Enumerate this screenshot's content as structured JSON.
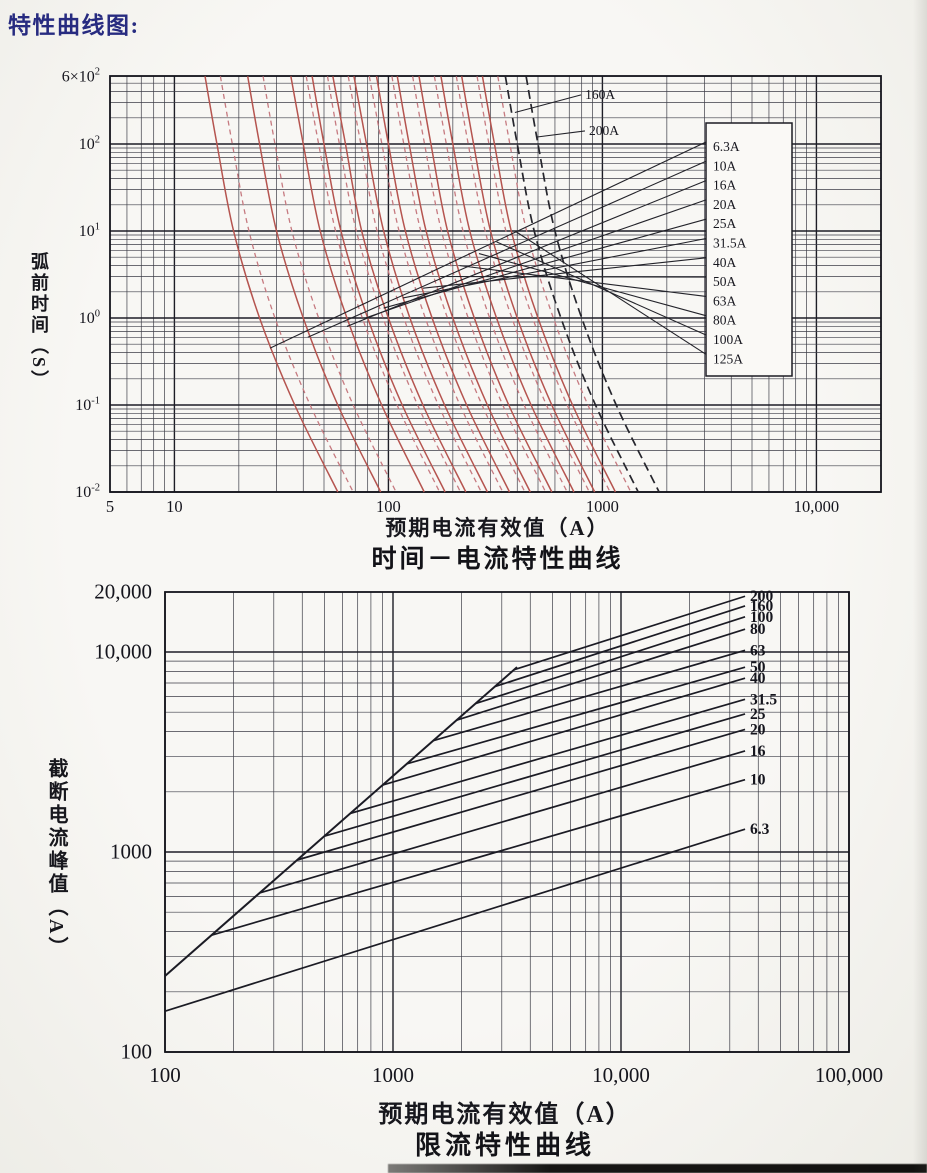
{
  "page": {
    "title": "特性曲线图:"
  },
  "chart_data": [
    {
      "type": "line",
      "title": "时间－电流特性曲线",
      "xlabel": "预期电流有效值（A）",
      "ylabel": "弧前时间（S）",
      "x_scale": "log",
      "y_scale": "log",
      "xlim": [
        5,
        20000
      ],
      "ylim": [
        0.01,
        600
      ],
      "grid": "log-minor",
      "legend_position": "right-box",
      "x_ticks": [
        {
          "v": 5,
          "label": "5"
        },
        {
          "v": 10,
          "label": "10"
        },
        {
          "v": 100,
          "label": "100"
        },
        {
          "v": 1000,
          "label": "1000"
        },
        {
          "v": 10000,
          "label": "10,000"
        }
      ],
      "y_ticks": [
        {
          "v": 600,
          "label": "6×10^2"
        },
        {
          "v": 100,
          "label": "10^2"
        },
        {
          "v": 10,
          "label": "10^1"
        },
        {
          "v": 1,
          "label": "10^0"
        },
        {
          "v": 0.1,
          "label": "10^-1"
        },
        {
          "v": 0.01,
          "label": "10^-2"
        }
      ],
      "t_values": [
        600,
        100,
        10,
        1,
        0.1,
        0.01
      ],
      "clearing_offset_factor": 1.18,
      "series": [
        {
          "name": "6.3A",
          "style": "solid-red",
          "in_legend": true,
          "i_values": [
            13.9,
            15.8,
            18.9,
            25,
            36.5,
            58
          ],
          "anchor": [
            28,
            0.45
          ]
        },
        {
          "name": "10A",
          "style": "solid-red",
          "in_legend": true,
          "i_values": [
            22,
            25,
            30,
            40,
            58,
            92
          ],
          "anchor": [
            42,
            0.6
          ]
        },
        {
          "name": "16A",
          "style": "solid-red",
          "in_legend": true,
          "i_values": [
            35,
            40,
            48,
            64,
            93,
            147
          ],
          "anchor": [
            64,
            0.8
          ]
        },
        {
          "name": "20A",
          "style": "solid-red",
          "in_legend": true,
          "i_values": [
            44,
            50,
            60,
            80,
            116,
            184
          ],
          "anchor": [
            78,
            1.0
          ]
        },
        {
          "name": "25A",
          "style": "solid-red",
          "in_legend": true,
          "i_values": [
            55,
            63,
            75,
            100,
            145,
            230
          ],
          "anchor": [
            95,
            1.3
          ]
        },
        {
          "name": "31.5A",
          "style": "solid-red",
          "in_legend": true,
          "i_values": [
            69,
            79,
            95,
            126,
            183,
            290
          ],
          "anchor": [
            117,
            1.7
          ]
        },
        {
          "name": "40A",
          "style": "solid-red",
          "in_legend": true,
          "i_values": [
            88,
            100,
            120,
            160,
            232,
            368
          ],
          "anchor": [
            145,
            2.2
          ]
        },
        {
          "name": "50A",
          "style": "solid-red",
          "in_legend": true,
          "i_values": [
            110,
            125,
            150,
            200,
            290,
            460
          ],
          "anchor": [
            175,
            3
          ]
        },
        {
          "name": "63A",
          "style": "solid-red",
          "in_legend": true,
          "i_values": [
            139,
            158,
            189,
            252,
            365,
            580
          ],
          "anchor": [
            215,
            4
          ]
        },
        {
          "name": "80A",
          "style": "solid-red",
          "in_legend": true,
          "i_values": [
            176,
            200,
            240,
            320,
            464,
            736
          ],
          "anchor": [
            265,
            5.5
          ]
        },
        {
          "name": "100A",
          "style": "solid-red",
          "in_legend": true,
          "i_values": [
            220,
            250,
            300,
            400,
            580,
            920
          ],
          "anchor": [
            320,
            7.5
          ]
        },
        {
          "name": "125A",
          "style": "solid-red",
          "in_legend": true,
          "i_values": [
            275,
            313,
            375,
            500,
            725,
            1150
          ],
          "anchor": [
            390,
            10
          ]
        },
        {
          "name": "160A",
          "style": "dashed-dark",
          "in_legend": false,
          "i_values": [
            352,
            400,
            480,
            640,
            928,
            1470
          ],
          "anchor": [
            390,
            230
          ],
          "label_at": [
            830,
            330
          ]
        },
        {
          "name": "200A",
          "style": "dashed-dark",
          "in_legend": false,
          "i_values": [
            440,
            500,
            600,
            800,
            1160,
            1840
          ],
          "anchor": [
            490,
            120
          ],
          "label_at": [
            865,
            127
          ]
        }
      ]
    },
    {
      "type": "line",
      "title": "限流特性曲线",
      "xlabel": "预期电流有效值（A）",
      "ylabel": "截断电流峰值（A）",
      "x_scale": "log",
      "y_scale": "log",
      "xlim": [
        100,
        100000
      ],
      "ylim": [
        100,
        20000
      ],
      "grid": "log-minor",
      "legend_position": "line-end-labels",
      "x_ticks": [
        {
          "v": 100,
          "label": "100"
        },
        {
          "v": 1000,
          "label": "1000"
        },
        {
          "v": 10000,
          "label": "10,000"
        },
        {
          "v": 100000,
          "label": "100,000"
        }
      ],
      "y_ticks": [
        {
          "v": 20000,
          "label": "20,000"
        },
        {
          "v": 10000,
          "label": "10,000"
        },
        {
          "v": 1000,
          "label": "1000"
        },
        {
          "v": 100,
          "label": "100"
        }
      ],
      "series": [
        {
          "name": "prospective-peak-line",
          "label": "",
          "points": [
            [
              100,
              240
            ],
            [
              3500,
              8400
            ]
          ]
        },
        {
          "name": "rating-200",
          "label": "200",
          "points": [
            [
              3400,
              8160
            ],
            [
              35000,
              19000
            ]
          ]
        },
        {
          "name": "rating-160",
          "label": "160",
          "points": [
            [
              2800,
              6720
            ],
            [
              35000,
              17000
            ]
          ]
        },
        {
          "name": "rating-100",
          "label": "100",
          "points": [
            [
              2300,
              5520
            ],
            [
              35000,
              15000
            ]
          ]
        },
        {
          "name": "rating-80",
          "label": "80",
          "points": [
            [
              1900,
              4560
            ],
            [
              35000,
              13000
            ]
          ]
        },
        {
          "name": "rating-63",
          "label": "63",
          "points": [
            [
              1500,
              3600
            ],
            [
              35000,
              10200
            ]
          ]
        },
        {
          "name": "rating-50",
          "label": "50",
          "points": [
            [
              1150,
              2760
            ],
            [
              35000,
              8400
            ]
          ]
        },
        {
          "name": "rating-40",
          "label": "40",
          "points": [
            [
              900,
              2160
            ],
            [
              35000,
              7400
            ]
          ]
        },
        {
          "name": "rating-31.5",
          "label": "31.5",
          "points": [
            [
              650,
              1560
            ],
            [
              35000,
              5800
            ]
          ]
        },
        {
          "name": "rating-25",
          "label": "25",
          "points": [
            [
              500,
              1200
            ],
            [
              35000,
              4900
            ]
          ]
        },
        {
          "name": "rating-20",
          "label": "20",
          "points": [
            [
              380,
              912
            ],
            [
              35000,
              4100
            ]
          ]
        },
        {
          "name": "rating-16",
          "label": "16",
          "points": [
            [
              260,
              624
            ],
            [
              35000,
              3200
            ]
          ]
        },
        {
          "name": "rating-10",
          "label": "10",
          "points": [
            [
              160,
              384
            ],
            [
              35000,
              2300
            ]
          ]
        },
        {
          "name": "rating-6.3",
          "label": "6.3",
          "points": [
            [
              100,
              160
            ],
            [
              35000,
              1300
            ]
          ]
        }
      ]
    }
  ]
}
